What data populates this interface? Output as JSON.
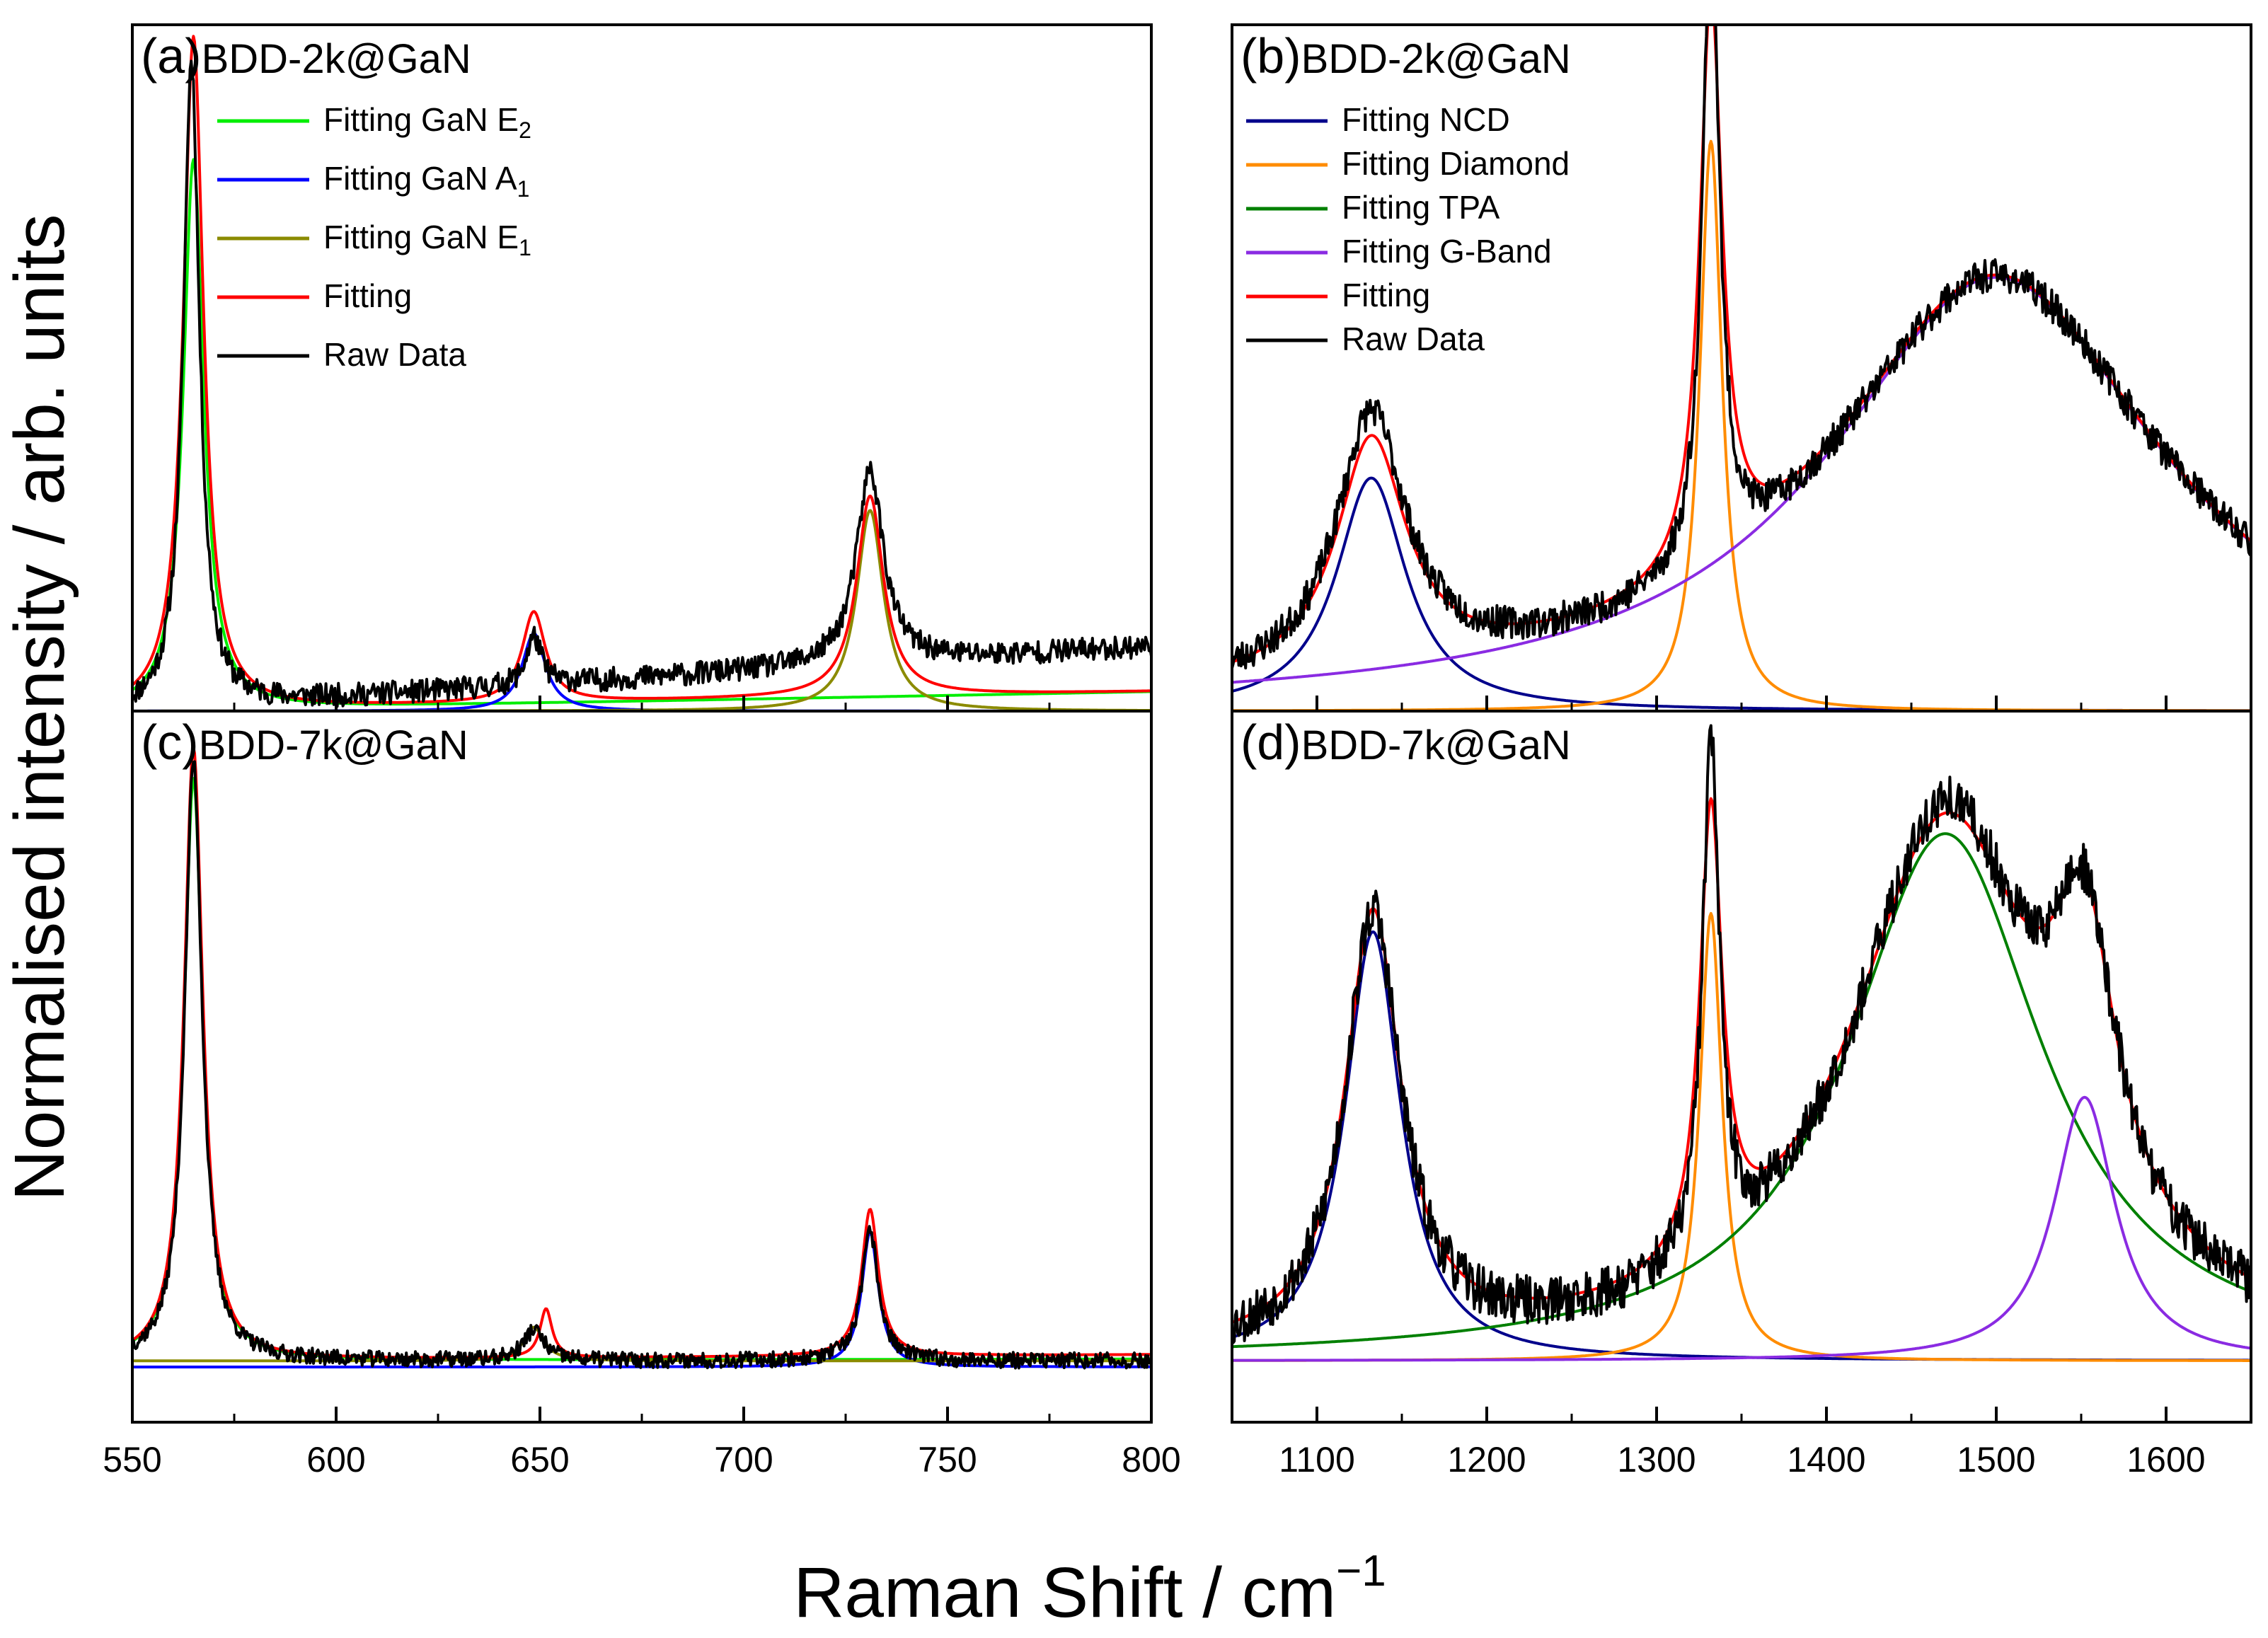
{
  "figure": {
    "ylabel": "Normalised intensity / arb. units",
    "xlabel": "Raman Shift / cm",
    "xlabel_sup": "−1"
  },
  "colors": {
    "raw": "#000000",
    "fitting": "#ff0000",
    "gan_e2": "#00ee00",
    "gan_a1": "#0000ff",
    "gan_e1": "#8b8b00",
    "ncd": "#00008b",
    "diamond": "#ff8c00",
    "tpa": "#008000",
    "gband": "#8a2be2"
  },
  "chart_data": [
    {
      "type": "line",
      "panel": "(a)",
      "title": "BDD-2k@GaN",
      "xlim": [
        550,
        800
      ],
      "ylim": [
        0,
        1.06
      ],
      "xticks": [
        "550",
        "600",
        "650",
        "700",
        "750",
        "800"
      ],
      "show_xticks": false,
      "legend": [
        {
          "key": "gan_e2",
          "text": "Fitting GaN E",
          "sub": "2"
        },
        {
          "key": "gan_a1",
          "text": "Fitting GaN A",
          "sub": "1"
        },
        {
          "key": "gan_e1",
          "text": "Fitting GaN E",
          "sub": "1"
        },
        {
          "key": "fitting",
          "text": "Fitting",
          "sub": ""
        },
        {
          "key": "raw",
          "text": "Raw Data",
          "sub": ""
        }
      ],
      "series": [
        {
          "name": "Fitting GaN E2",
          "key": "gan_e2",
          "base": 0.0,
          "baseSlope": 0.03,
          "peaks": [
            [
              565,
              0.85,
              3
            ]
          ]
        },
        {
          "name": "Fitting GaN A1",
          "key": "gan_a1",
          "base": 0.0,
          "baseSlope": 0.0,
          "peaks": [
            [
              648.5,
              0.12,
              3.5
            ]
          ]
        },
        {
          "name": "Fitting GaN E1",
          "key": "gan_e1",
          "base": 0.0,
          "baseSlope": 0.0,
          "peaks": [
            [
              731,
              0.31,
              4
            ]
          ]
        },
        {
          "name": "Fitting",
          "key": "fitting",
          "base": 0.0,
          "baseSlope": 0.03,
          "peaks": [
            [
              565,
              1.04,
              3
            ],
            [
              648.5,
              0.14,
              3.5
            ],
            [
              731,
              0.31,
              4
            ]
          ]
        },
        {
          "name": "Raw Data",
          "key": "raw",
          "base": 0.0,
          "baseSlope": 0.1,
          "noise": 0.018,
          "seed": 11,
          "peaks": [
            [
              564.5,
              1.0,
              2.4
            ],
            [
              648.5,
              0.075,
              2.2
            ],
            [
              731,
              0.3,
              4
            ]
          ]
        }
      ]
    },
    {
      "type": "line",
      "panel": "(b)",
      "title": "BDD-2k@GaN",
      "xlim": [
        1050,
        1650
      ],
      "ylim": [
        0,
        1.06
      ],
      "show_xticks": false,
      "legend": [
        {
          "key": "ncd",
          "text": "Fitting NCD",
          "sub": ""
        },
        {
          "key": "diamond",
          "text": "Fitting Diamond",
          "sub": ""
        },
        {
          "key": "tpa",
          "text": "Fitting TPA",
          "sub": ""
        },
        {
          "key": "gband",
          "text": "Fitting G-Band",
          "sub": ""
        },
        {
          "key": "fitting",
          "text": "Fitting",
          "sub": ""
        },
        {
          "key": "raw",
          "text": "Raw Data",
          "sub": ""
        }
      ],
      "series": [
        {
          "name": "Fitting NCD",
          "key": "ncd",
          "base": 0.0,
          "baseSlope": 0.0,
          "peaks": [
            [
              1132,
              0.36,
              25
            ]
          ]
        },
        {
          "name": "Fitting Diamond",
          "key": "diamond",
          "base": 0.0,
          "baseSlope": 0.0,
          "peaks": [
            [
              1332,
              0.88,
              8
            ]
          ]
        },
        {
          "name": "Fitting TPA",
          "key": "tpa",
          "base": 0.0,
          "baseSlope": 0.0,
          "peaks": []
        },
        {
          "name": "Fitting G-Band",
          "key": "gband",
          "base": 0.0,
          "baseSlope": 0.0,
          "peaks": [
            [
              1500,
              0.67,
              120
            ]
          ]
        },
        {
          "name": "Fitting",
          "key": "fitting",
          "base": 0.0,
          "baseSlope": 0.0,
          "peaks": [
            [
              1132,
              0.36,
              25
            ],
            [
              1332,
              0.88,
              8
            ],
            [
              1500,
              0.67,
              120
            ]
          ]
        },
        {
          "name": "Raw Data",
          "key": "raw",
          "base": 0.0,
          "baseSlope": 0.0,
          "noise": 0.025,
          "seed": 23,
          "peaks": [
            [
              1132,
              0.4,
              25
            ],
            [
              1332,
              1.0,
              6
            ],
            [
              1500,
              0.67,
              120
            ]
          ]
        }
      ]
    },
    {
      "type": "line",
      "panel": "(c)",
      "title": "BDD-7k@GaN",
      "xlim": [
        550,
        800
      ],
      "ylim": [
        -0.1,
        1.06
      ],
      "xticks": [
        "550",
        "600",
        "650",
        "700",
        "750",
        "800"
      ],
      "show_xticks": true,
      "legend": [],
      "series": [
        {
          "name": "Fitting GaN E2",
          "key": "gan_e2",
          "base": 0.0,
          "baseSlope": 0.003,
          "peaks": [
            [
              565,
              0.95,
              2.8
            ]
          ]
        },
        {
          "name": "Fitting GaN A1",
          "key": "gan_a1",
          "base": -0.01,
          "baseSlope": 0.0,
          "peaks": [
            [
              731,
              0.22,
              2.5
            ]
          ]
        },
        {
          "name": "Fitting GaN E1",
          "key": "gan_e1",
          "base": 0.0,
          "baseSlope": 0.0,
          "peaks": [
            [
              648.5,
              0.055,
              3
            ]
          ]
        },
        {
          "name": "Fitting",
          "key": "fitting",
          "base": 0.0,
          "baseSlope": 0.01,
          "peaks": [
            [
              565,
              1.0,
              2.8
            ],
            [
              651.5,
              0.08,
              1.8
            ],
            [
              731,
              0.24,
              2.5
            ]
          ]
        },
        {
          "name": "Raw Data",
          "key": "raw",
          "base": 0.0,
          "baseSlope": 0.0,
          "noise": 0.013,
          "seed": 37,
          "peaks": [
            [
              565,
              0.98,
              2.6
            ],
            [
              648.5,
              0.05,
              3
            ],
            [
              731,
              0.21,
              2.5
            ]
          ]
        }
      ]
    },
    {
      "type": "line",
      "panel": "(d)",
      "title": "BDD-7k@GaN",
      "xlim": [
        1050,
        1650
      ],
      "ylim": [
        -0.1,
        1.06
      ],
      "xticks": [
        "1100",
        "1200",
        "1300",
        "1400",
        "1500",
        "1600"
      ],
      "show_xticks": true,
      "legend": [],
      "series": [
        {
          "name": "Fitting NCD",
          "key": "ncd",
          "base": 0.0,
          "baseSlope": 0.0,
          "peaks": [
            [
              1133,
              0.7,
              20
            ]
          ]
        },
        {
          "name": "Fitting Diamond",
          "key": "diamond",
          "base": 0.0,
          "baseSlope": 0.0,
          "peaks": [
            [
              1332,
              0.73,
              8
            ]
          ]
        },
        {
          "name": "Fitting TPA",
          "key": "tpa",
          "base": 0.0,
          "baseSlope": 0.0,
          "peaks": [
            [
              1470,
              0.86,
              70
            ]
          ]
        },
        {
          "name": "Fitting G-Band",
          "key": "gband",
          "base": 0.0,
          "baseSlope": 0.0,
          "peaks": [
            [
              1552,
              0.43,
              22
            ]
          ]
        },
        {
          "name": "Fitting",
          "key": "fitting",
          "base": 0.0,
          "baseSlope": 0.0,
          "peaks": [
            [
              1133,
              0.7,
              20
            ],
            [
              1332,
              0.73,
              8
            ],
            [
              1470,
              0.86,
              70
            ],
            [
              1552,
              0.43,
              22
            ]
          ]
        },
        {
          "name": "Raw Data",
          "key": "raw",
          "base": 0.0,
          "baseSlope": 0.0,
          "noise": 0.04,
          "seed": 53,
          "peaks": [
            [
              1133,
              0.7,
              20
            ],
            [
              1332,
              0.84,
              6
            ],
            [
              1470,
              0.88,
              68
            ],
            [
              1552,
              0.44,
              22
            ]
          ]
        }
      ]
    }
  ]
}
